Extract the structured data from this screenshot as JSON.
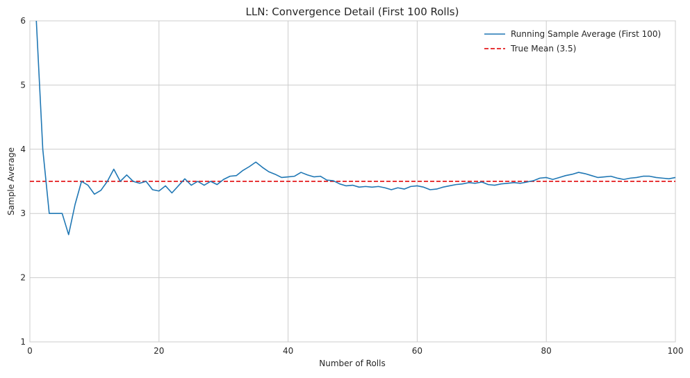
{
  "chart_data": {
    "type": "line",
    "title": "LLN: Convergence Detail (First 100 Rolls)",
    "xlabel": "Number of Rolls",
    "ylabel": "Sample Average",
    "xlim": [
      0,
      100
    ],
    "ylim": [
      1,
      6
    ],
    "xticks": [
      0,
      20,
      40,
      60,
      80,
      100
    ],
    "yticks": [
      1,
      2,
      3,
      4,
      5,
      6
    ],
    "grid": true,
    "legend_position": "top-right",
    "colors": {
      "series": "#1f77b4",
      "mean": "#e41a1c",
      "grid": "#cccccc",
      "axes": "#cccccc"
    },
    "series": [
      {
        "name": "Running Sample Average (First 100)",
        "x": [
          1,
          2,
          3,
          4,
          5,
          6,
          7,
          8,
          9,
          10,
          11,
          12,
          13,
          14,
          15,
          16,
          17,
          18,
          19,
          20,
          21,
          22,
          23,
          24,
          25,
          26,
          27,
          28,
          29,
          30,
          31,
          32,
          33,
          34,
          35,
          36,
          37,
          38,
          39,
          40,
          41,
          42,
          43,
          44,
          45,
          46,
          47,
          48,
          49,
          50,
          51,
          52,
          53,
          54,
          55,
          56,
          57,
          58,
          59,
          60,
          61,
          62,
          63,
          64,
          65,
          66,
          67,
          68,
          69,
          70,
          71,
          72,
          73,
          74,
          75,
          76,
          77,
          78,
          79,
          80,
          81,
          82,
          83,
          84,
          85,
          86,
          87,
          88,
          89,
          90,
          91,
          92,
          93,
          94,
          95,
          96,
          97,
          98,
          99,
          100
        ],
        "values": [
          6,
          4,
          3,
          3,
          3,
          2.67,
          3.14,
          3.5,
          3.44,
          3.3,
          3.36,
          3.5,
          3.69,
          3.5,
          3.6,
          3.5,
          3.47,
          3.5,
          3.37,
          3.35,
          3.43,
          3.32,
          3.43,
          3.54,
          3.44,
          3.5,
          3.44,
          3.5,
          3.45,
          3.53,
          3.58,
          3.59,
          3.67,
          3.73,
          3.8,
          3.72,
          3.65,
          3.61,
          3.56,
          3.57,
          3.58,
          3.64,
          3.6,
          3.57,
          3.58,
          3.52,
          3.51,
          3.46,
          3.43,
          3.44,
          3.41,
          3.42,
          3.41,
          3.42,
          3.4,
          3.37,
          3.4,
          3.38,
          3.42,
          3.43,
          3.41,
          3.37,
          3.38,
          3.41,
          3.43,
          3.45,
          3.46,
          3.48,
          3.47,
          3.49,
          3.45,
          3.44,
          3.46,
          3.47,
          3.48,
          3.47,
          3.49,
          3.51,
          3.55,
          3.56,
          3.53,
          3.56,
          3.59,
          3.61,
          3.64,
          3.62,
          3.59,
          3.56,
          3.57,
          3.58,
          3.55,
          3.53,
          3.55,
          3.56,
          3.58,
          3.58,
          3.56,
          3.55,
          3.54,
          3.56
        ],
        "color": "#1f77b4",
        "style": "solid"
      },
      {
        "name": "True Mean (3.5)",
        "constant": 3.5,
        "color": "#e41a1c",
        "style": "dashed"
      }
    ]
  }
}
